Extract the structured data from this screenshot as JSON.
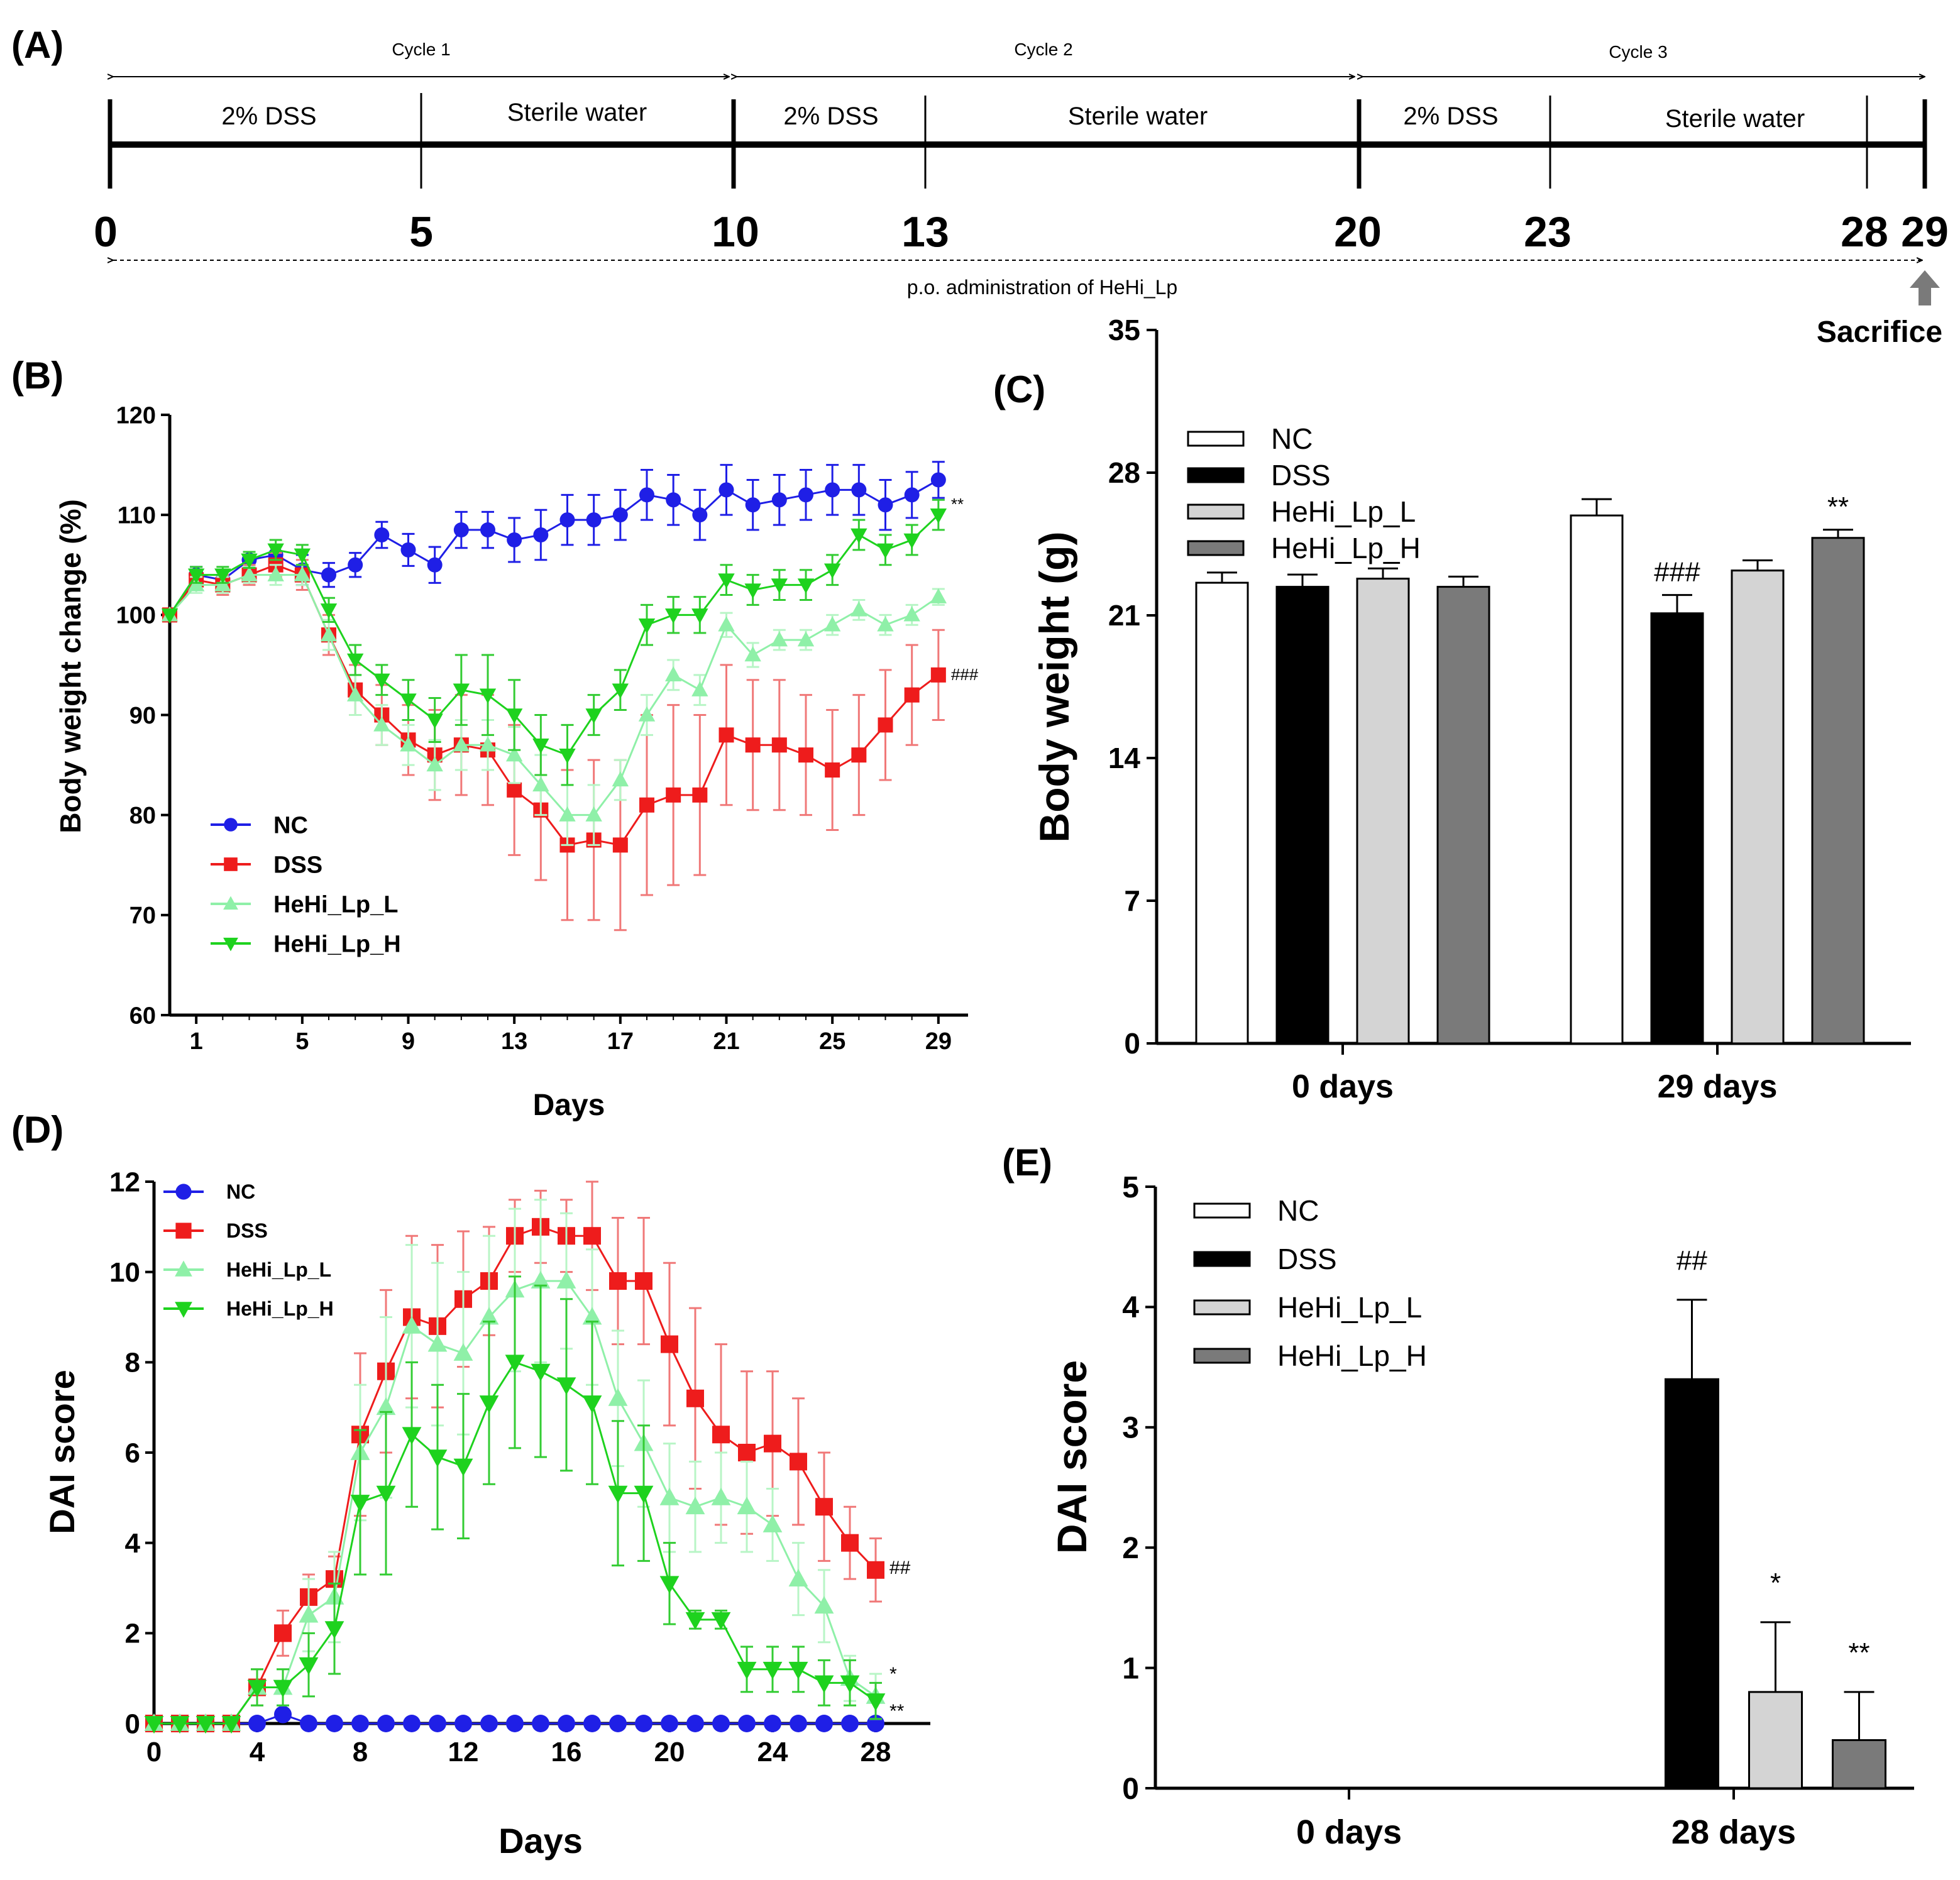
{
  "panel_labels": [
    "(A)",
    "(B)",
    "(C)",
    "(D)",
    "(E)"
  ],
  "timeline": {
    "cycles": [
      "Cycle 1",
      "Cycle 2",
      "Cycle 3"
    ],
    "phase_labels": [
      "2% DSS",
      "Sterile water",
      "2% DSS",
      "Sterile water",
      "2% DSS",
      "Sterile water"
    ],
    "day_ticks": [
      "0",
      "5",
      "10",
      "13",
      "20",
      "23",
      "28",
      "29"
    ],
    "day_values": [
      0,
      5,
      10,
      13,
      20,
      23,
      28,
      29
    ],
    "admin_label": "p.o. administration of HeHi_Lp",
    "sacrifice_label": "Sacrifice"
  },
  "colors": {
    "NC": "#1f1fe6",
    "DSS": "#ee1c1c",
    "HeHi_Lp_L": "#8ff0a8",
    "HeHi_Lp_H": "#1ed21e",
    "DSS_err": "#f07878",
    "L_err": "#b8f5c6",
    "H_err": "#33cc33",
    "bar_NC": "#ffffff",
    "bar_DSS": "#000000",
    "bar_L": "#d4d4d4",
    "bar_H": "#7a7a7a"
  },
  "chart_data": [
    {
      "panel": "B",
      "type": "line",
      "xlabel": "Days",
      "ylabel": "Body weight change (%)",
      "xlim": [
        0,
        30
      ],
      "ylim": [
        60,
        120
      ],
      "x_ticks": [
        "1",
        "5",
        "9",
        "13",
        "17",
        "21",
        "25",
        "29"
      ],
      "y_ticks": [
        "60",
        "70",
        "80",
        "90",
        "100",
        "110",
        "120"
      ],
      "legend": [
        "NC",
        "DSS",
        "HeHi_Lp_L",
        "HeHi_Lp_H"
      ],
      "x": [
        0,
        1,
        2,
        3,
        4,
        5,
        6,
        7,
        8,
        9,
        10,
        11,
        12,
        13,
        14,
        15,
        16,
        17,
        18,
        19,
        20,
        21,
        22,
        23,
        24,
        25,
        26,
        27,
        28,
        29
      ],
      "series": [
        {
          "name": "NC",
          "values": [
            100,
            104,
            103.5,
            105.5,
            106,
            104.5,
            104,
            105,
            108,
            106.5,
            105,
            108.5,
            108.5,
            107.5,
            108,
            109.5,
            109.5,
            110,
            112,
            111.5,
            110,
            112.5,
            111,
            111.5,
            112,
            112.5,
            112.5,
            111,
            112,
            113.5
          ],
          "errors": [
            0,
            0.8,
            0.8,
            0.8,
            1,
            1.5,
            1.2,
            1.2,
            1.3,
            1.6,
            1.8,
            1.8,
            1.8,
            2.2,
            2.5,
            2.5,
            2.5,
            2.5,
            2.5,
            2.5,
            2.5,
            2.5,
            2.5,
            2.5,
            2.5,
            2.5,
            2.5,
            2.5,
            2.3,
            1.8
          ]
        },
        {
          "name": "DSS",
          "values": [
            100,
            103.5,
            103,
            104,
            105,
            104,
            98,
            92.5,
            90,
            87.5,
            86,
            87,
            86.5,
            82.5,
            80.5,
            77,
            77.5,
            77,
            81,
            82,
            82,
            88,
            87,
            87,
            86,
            84.5,
            86,
            89,
            92,
            94
          ],
          "errors": [
            0,
            1,
            1,
            1,
            1.2,
            1.5,
            2,
            2.5,
            3,
            3.5,
            4.5,
            5,
            5.5,
            6.5,
            7,
            7.5,
            8,
            8.5,
            9,
            9,
            8,
            7,
            6.5,
            6.5,
            6,
            6,
            6,
            5.5,
            5,
            4.5
          ]
        },
        {
          "name": "HeHi_Lp_L",
          "values": [
            100,
            103,
            103,
            104,
            104,
            104,
            98,
            92,
            89,
            87,
            85,
            87,
            87,
            86,
            83,
            80,
            80,
            83.5,
            90,
            94,
            92.5,
            99,
            96,
            97.5,
            97.5,
            99,
            100.5,
            99,
            100,
            101.8
          ],
          "errors": [
            0,
            0.8,
            0.8,
            0.8,
            1,
            1,
            1.5,
            2,
            2,
            2,
            2.5,
            2.5,
            2.5,
            2.8,
            3,
            3,
            3,
            2,
            2,
            1.5,
            1.5,
            1.2,
            1.2,
            1,
            1,
            1,
            1,
            1,
            1,
            0.8
          ]
        },
        {
          "name": "HeHi_Lp_H",
          "values": [
            100,
            104,
            104,
            105.5,
            106.5,
            106,
            100.5,
            95.5,
            93.5,
            91.5,
            89.5,
            92.5,
            92,
            90,
            87,
            86,
            90,
            92.5,
            99,
            100,
            100,
            103.5,
            102.5,
            103,
            103,
            104.5,
            108,
            106.5,
            107.5,
            110
          ],
          "errors": [
            0,
            0.8,
            0.8,
            0.8,
            1,
            1,
            1.2,
            1.5,
            1.5,
            2,
            2.2,
            3.5,
            4,
            3.5,
            3,
            3,
            2,
            2,
            2,
            1.8,
            1.8,
            1.5,
            1.5,
            1.5,
            1.5,
            1.5,
            1.5,
            1.5,
            1.5,
            1.5
          ]
        }
      ],
      "annotations": [
        {
          "series": "HeHi_Lp_H",
          "text": "**"
        },
        {
          "series": "DSS",
          "text": "###"
        }
      ]
    },
    {
      "panel": "C",
      "type": "bar",
      "ylabel": "Body weight (g)",
      "ylim": [
        0,
        35
      ],
      "y_ticks": [
        "0",
        "7",
        "14",
        "21",
        "28",
        "35"
      ],
      "categories": [
        "0 days",
        "29 days"
      ],
      "legend": [
        "NC",
        "DSS",
        "HeHi_Lp_L",
        "HeHi_Lp_H"
      ],
      "series": [
        {
          "name": "NC",
          "values": [
            22.6,
            25.9
          ],
          "errors": [
            0.5,
            0.8
          ]
        },
        {
          "name": "DSS",
          "values": [
            22.4,
            21.1
          ],
          "errors": [
            0.6,
            0.9
          ]
        },
        {
          "name": "HeHi_Lp_L",
          "values": [
            22.8,
            23.2
          ],
          "errors": [
            0.5,
            0.5
          ]
        },
        {
          "name": "HeHi_Lp_H",
          "values": [
            22.4,
            24.8
          ],
          "errors": [
            0.5,
            0.4
          ]
        }
      ],
      "annotations": [
        {
          "category": "29 days",
          "series": "DSS",
          "text": "###"
        },
        {
          "category": "29 days",
          "series": "HeHi_Lp_H",
          "text": "**"
        }
      ]
    },
    {
      "panel": "D",
      "type": "line",
      "xlabel": "Days",
      "ylabel": "DAI score",
      "xlim": [
        0,
        30
      ],
      "ylim": [
        0,
        12
      ],
      "x_ticks": [
        "0",
        "4",
        "8",
        "12",
        "16",
        "20",
        "24",
        "28"
      ],
      "y_ticks": [
        "0",
        "2",
        "4",
        "6",
        "8",
        "10",
        "12"
      ],
      "legend": [
        "NC",
        "DSS",
        "HeHi_Lp_L",
        "HeHi_Lp_H"
      ],
      "x": [
        0,
        1,
        2,
        3,
        4,
        5,
        6,
        7,
        8,
        9,
        10,
        11,
        12,
        13,
        14,
        15,
        16,
        17,
        18,
        19,
        20,
        21,
        22,
        23,
        24,
        25,
        26,
        27,
        28
      ],
      "series": [
        {
          "name": "NC",
          "values": [
            0,
            0,
            0,
            0,
            0,
            0.2,
            0,
            0,
            0,
            0,
            0,
            0,
            0,
            0,
            0,
            0,
            0,
            0,
            0,
            0,
            0,
            0,
            0,
            0,
            0,
            0,
            0,
            0,
            0
          ],
          "errors": [
            0,
            0,
            0,
            0,
            0,
            0,
            0,
            0,
            0,
            0,
            0,
            0,
            0,
            0,
            0,
            0,
            0,
            0,
            0,
            0,
            0,
            0,
            0,
            0,
            0,
            0,
            0,
            0,
            0
          ]
        },
        {
          "name": "DSS",
          "values": [
            0,
            0,
            0,
            0,
            0.8,
            2,
            2.8,
            3.2,
            6.4,
            7.8,
            9,
            8.8,
            9.4,
            9.8,
            10.8,
            11,
            10.8,
            10.8,
            9.8,
            9.8,
            8.4,
            7.2,
            6.4,
            6,
            6.2,
            5.8,
            4.8,
            4,
            3.4
          ],
          "errors": [
            0,
            0,
            0,
            0,
            0.4,
            0.5,
            0.5,
            0.5,
            1.8,
            1.8,
            1.8,
            1.8,
            1.5,
            1.2,
            0.8,
            0.8,
            0.8,
            1.2,
            1.4,
            1.4,
            1.8,
            2,
            2,
            1.8,
            1.6,
            1.4,
            1.2,
            0.8,
            0.7
          ]
        },
        {
          "name": "HeHi_Lp_L",
          "values": [
            0,
            0,
            0,
            0,
            0.8,
            0.8,
            2.4,
            2.8,
            6,
            7,
            8.8,
            8.4,
            8.2,
            9,
            9.6,
            9.8,
            9.8,
            9,
            7.2,
            6.2,
            5,
            4.8,
            5,
            4.8,
            4.4,
            3.2,
            2.6,
            1,
            0.6
          ],
          "errors": [
            0,
            0,
            0,
            0,
            0.4,
            0.4,
            0.8,
            1,
            1.5,
            2,
            1.8,
            1.8,
            1.8,
            1.8,
            1.8,
            1.8,
            1.5,
            1.5,
            1.5,
            1.4,
            1.2,
            1,
            1,
            1,
            0.8,
            0.8,
            0.8,
            0.5,
            0.5
          ]
        },
        {
          "name": "HeHi_Lp_H",
          "values": [
            0,
            0,
            0,
            0,
            0.8,
            0.8,
            1.3,
            2.1,
            4.9,
            5.1,
            6.4,
            5.9,
            5.7,
            7.1,
            8,
            7.8,
            7.5,
            7.1,
            5.1,
            5.1,
            3.1,
            2.3,
            2.3,
            1.2,
            1.2,
            1.2,
            0.9,
            0.9,
            0.5
          ],
          "errors": [
            0,
            0,
            0,
            0,
            0.4,
            0.4,
            0.7,
            1,
            1.6,
            1.8,
            1.6,
            1.6,
            1.6,
            1.8,
            1.9,
            1.9,
            1.9,
            1.8,
            1.6,
            1.5,
            0.9,
            0.2,
            0.2,
            0.5,
            0.5,
            0.5,
            0.5,
            0.5,
            0.4
          ]
        }
      ],
      "annotations": [
        {
          "series": "DSS",
          "text": "##"
        },
        {
          "series": "HeHi_Lp_L",
          "text": "*"
        },
        {
          "series": "HeHi_Lp_H",
          "text": "**"
        }
      ]
    },
    {
      "panel": "E",
      "type": "bar",
      "ylabel": "DAI score",
      "ylim": [
        0,
        5
      ],
      "y_ticks": [
        "0",
        "1",
        "2",
        "3",
        "4",
        "5"
      ],
      "categories": [
        "0 days",
        "28 days"
      ],
      "legend": [
        "NC",
        "DSS",
        "HeHi_Lp_L",
        "HeHi_Lp_H"
      ],
      "series": [
        {
          "name": "NC",
          "values": [
            0,
            0
          ],
          "errors": [
            0,
            0
          ]
        },
        {
          "name": "DSS",
          "values": [
            0,
            3.4
          ],
          "errors": [
            0,
            0.66
          ]
        },
        {
          "name": "HeHi_Lp_L",
          "values": [
            0,
            0.8
          ],
          "errors": [
            0,
            0.58
          ]
        },
        {
          "name": "HeHi_Lp_H",
          "values": [
            0,
            0.4
          ],
          "errors": [
            0,
            0.4
          ]
        }
      ],
      "annotations": [
        {
          "category": "28 days",
          "series": "DSS",
          "text": "##"
        },
        {
          "category": "28 days",
          "series": "HeHi_Lp_L",
          "text": "*"
        },
        {
          "category": "28 days",
          "series": "HeHi_Lp_H",
          "text": "**"
        }
      ]
    }
  ]
}
